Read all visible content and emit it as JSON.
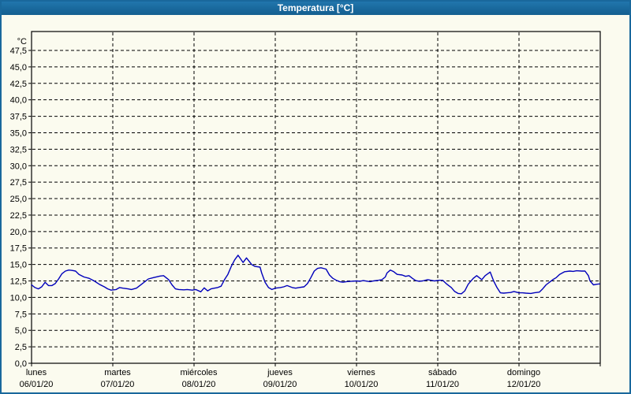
{
  "header": {
    "title": "Temperatura [°C]"
  },
  "colors": {
    "title_bar": "#19689c",
    "title_text": "#ffffff",
    "background": "#fbfbef",
    "grid": "#000000",
    "axis": "#000000",
    "axis_text": "#000000",
    "line": "#0000bb"
  },
  "chart_data": {
    "type": "line",
    "title": "Temperatura [°C]",
    "ylabel": "°C",
    "xlabel": "",
    "ylim": [
      0,
      47.5
    ],
    "ytick_step": 2.5,
    "grid": "dashed",
    "legend": "none",
    "ytick_labels": [
      "0,0",
      "2,5",
      "5,0",
      "7,5",
      "10,0",
      "12,5",
      "15,0",
      "17,5",
      "20,0",
      "22,5",
      "25,0",
      "27,5",
      "30,0",
      "32,5",
      "35,0",
      "37,5",
      "40,0",
      "42,5",
      "45,0",
      "47,5"
    ],
    "x_axis": {
      "hours_span": 168,
      "days": [
        {
          "name": "lunes",
          "date": "06/01/20"
        },
        {
          "name": "martes",
          "date": "07/01/20"
        },
        {
          "name": "miércoles",
          "date": "08/01/20"
        },
        {
          "name": "jueves",
          "date": "09/01/20"
        },
        {
          "name": "viernes",
          "date": "10/01/20"
        },
        {
          "name": "sábado",
          "date": "11/01/20"
        },
        {
          "name": "domingo",
          "date": "12/01/20"
        }
      ]
    },
    "series": [
      {
        "name": "Temperatura",
        "unit": "°C",
        "color": "#0000bb",
        "points": [
          [
            0,
            11.9
          ],
          [
            1,
            11.5
          ],
          [
            2,
            11.3
          ],
          [
            3,
            11.6
          ],
          [
            4,
            12.3
          ],
          [
            5,
            11.8
          ],
          [
            6,
            11.8
          ],
          [
            7,
            12.1
          ],
          [
            8,
            12.8
          ],
          [
            9,
            13.6
          ],
          [
            10,
            14.0
          ],
          [
            11,
            14.15
          ],
          [
            12,
            14.1
          ],
          [
            13,
            14.0
          ],
          [
            14,
            13.5
          ],
          [
            15.5,
            13.1
          ],
          [
            17,
            12.9
          ],
          [
            18.5,
            12.5
          ],
          [
            20,
            12.0
          ],
          [
            21.5,
            11.6
          ],
          [
            22.5,
            11.3
          ],
          [
            23.5,
            11.1
          ],
          [
            25,
            11.2
          ],
          [
            26,
            11.5
          ],
          [
            27,
            11.4
          ],
          [
            28.5,
            11.3
          ],
          [
            29.5,
            11.2
          ],
          [
            31,
            11.4
          ],
          [
            32.5,
            12.0
          ],
          [
            34.5,
            12.8
          ],
          [
            36,
            13.0
          ],
          [
            38,
            13.25
          ],
          [
            39,
            13.3
          ],
          [
            40.5,
            12.7
          ],
          [
            41.5,
            11.9
          ],
          [
            42.5,
            11.3
          ],
          [
            43.5,
            11.2
          ],
          [
            45,
            11.15
          ],
          [
            46,
            11.2
          ],
          [
            47.5,
            11.1
          ],
          [
            48.5,
            11.2
          ],
          [
            50,
            10.85
          ],
          [
            51,
            11.45
          ],
          [
            52,
            11.0
          ],
          [
            53,
            11.3
          ],
          [
            54,
            11.4
          ],
          [
            55,
            11.5
          ],
          [
            56,
            11.7
          ],
          [
            57,
            12.7
          ],
          [
            58,
            13.5
          ],
          [
            59,
            14.7
          ],
          [
            60,
            15.7
          ],
          [
            61,
            16.4
          ],
          [
            62.5,
            15.3
          ],
          [
            63.5,
            16.0
          ],
          [
            65,
            15.0
          ],
          [
            66,
            14.7
          ],
          [
            67.5,
            14.6
          ],
          [
            68,
            13.7
          ],
          [
            69,
            12.3
          ],
          [
            70,
            11.5
          ],
          [
            71,
            11.2
          ],
          [
            72,
            11.4
          ],
          [
            73.5,
            11.5
          ],
          [
            74.5,
            11.6
          ],
          [
            75.5,
            11.8
          ],
          [
            77,
            11.5
          ],
          [
            78,
            11.4
          ],
          [
            79,
            11.5
          ],
          [
            80.5,
            11.6
          ],
          [
            81.5,
            12.1
          ],
          [
            82.5,
            13.0
          ],
          [
            83.5,
            14.0
          ],
          [
            84.5,
            14.4
          ],
          [
            85.5,
            14.5
          ],
          [
            87,
            14.3
          ],
          [
            88,
            13.4
          ],
          [
            89,
            12.9
          ],
          [
            90,
            12.6
          ],
          [
            91,
            12.4
          ],
          [
            92,
            12.3
          ],
          [
            93,
            12.4
          ],
          [
            94.5,
            12.45
          ],
          [
            96,
            12.5
          ],
          [
            97,
            12.45
          ],
          [
            98,
            12.55
          ],
          [
            100,
            12.4
          ],
          [
            101,
            12.5
          ],
          [
            102.5,
            12.6
          ],
          [
            103.5,
            12.7
          ],
          [
            104.5,
            13.1
          ],
          [
            105,
            13.7
          ],
          [
            106,
            14.15
          ],
          [
            107,
            13.9
          ],
          [
            108,
            13.5
          ],
          [
            109.5,
            13.4
          ],
          [
            110.5,
            13.2
          ],
          [
            111.5,
            13.3
          ],
          [
            112.5,
            12.9
          ],
          [
            113.5,
            12.55
          ],
          [
            114.5,
            12.45
          ],
          [
            115.5,
            12.5
          ],
          [
            117,
            12.7
          ],
          [
            118,
            12.6
          ],
          [
            119,
            12.5
          ],
          [
            120.5,
            12.6
          ],
          [
            121.5,
            12.6
          ],
          [
            122.5,
            12.1
          ],
          [
            124,
            11.5
          ],
          [
            125,
            10.9
          ],
          [
            126,
            10.6
          ],
          [
            127,
            10.55
          ],
          [
            128,
            11.0
          ],
          [
            129,
            12.0
          ],
          [
            130.5,
            12.9
          ],
          [
            131.5,
            13.3
          ],
          [
            133,
            12.7
          ],
          [
            134,
            13.3
          ],
          [
            135.5,
            13.85
          ],
          [
            136.5,
            12.5
          ],
          [
            137.5,
            11.5
          ],
          [
            138.5,
            10.7
          ],
          [
            139.5,
            10.65
          ],
          [
            140.5,
            10.7
          ],
          [
            141.5,
            10.75
          ],
          [
            142.5,
            10.9
          ],
          [
            144,
            10.7
          ],
          [
            145,
            10.7
          ],
          [
            146,
            10.65
          ],
          [
            147.5,
            10.6
          ],
          [
            148.5,
            10.7
          ],
          [
            150,
            10.8
          ],
          [
            151,
            11.3
          ],
          [
            152,
            11.9
          ],
          [
            153,
            12.3
          ],
          [
            154,
            12.7
          ],
          [
            155,
            13.0
          ],
          [
            156,
            13.5
          ],
          [
            157.5,
            13.9
          ],
          [
            159,
            14.0
          ],
          [
            160,
            13.95
          ],
          [
            161,
            14.05
          ],
          [
            162.5,
            14.0
          ],
          [
            163.5,
            14.0
          ],
          [
            164.5,
            13.3
          ],
          [
            165,
            12.5
          ],
          [
            166,
            11.9
          ],
          [
            167,
            12.0
          ],
          [
            167.8,
            12.05
          ]
        ]
      }
    ]
  }
}
